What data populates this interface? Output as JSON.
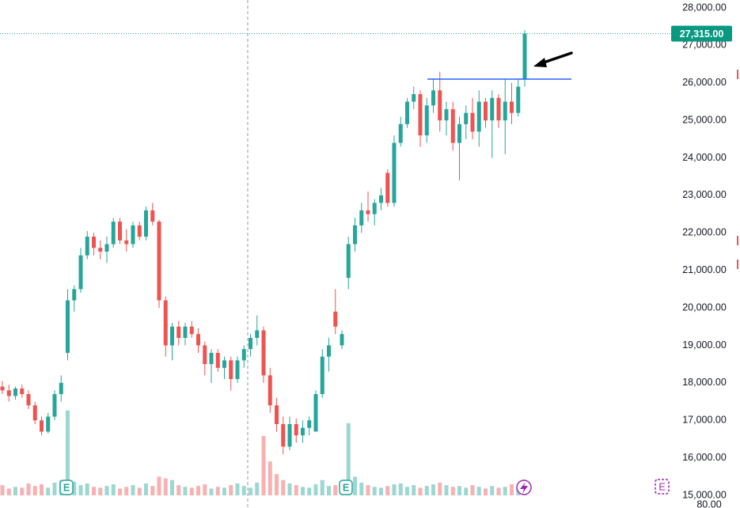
{
  "chart_data": {
    "type": "candlestick",
    "ohlc": [
      [
        17900,
        18050,
        17700,
        17800
      ],
      [
        17800,
        17950,
        17500,
        17650
      ],
      [
        17650,
        17900,
        17550,
        17850
      ],
      [
        17850,
        17950,
        17600,
        17700
      ],
      [
        17700,
        17800,
        17300,
        17400
      ],
      [
        17400,
        17500,
        16900,
        17000
      ],
      [
        17000,
        17100,
        16600,
        16700
      ],
      [
        16700,
        17200,
        16650,
        17100
      ],
      [
        17100,
        17800,
        17000,
        17700
      ],
      [
        17700,
        18200,
        17500,
        18000
      ],
      [
        18800,
        20500,
        18600,
        20200
      ],
      [
        20200,
        20600,
        19900,
        20500
      ],
      [
        20500,
        21600,
        20400,
        21400
      ],
      [
        21400,
        22050,
        21300,
        21900
      ],
      [
        21900,
        22000,
        21400,
        21600
      ],
      [
        21600,
        21800,
        21300,
        21500
      ],
      [
        21500,
        21900,
        21200,
        21700
      ],
      [
        21700,
        22400,
        21600,
        22300
      ],
      [
        22300,
        22400,
        21700,
        21800
      ],
      [
        21800,
        22100,
        21500,
        21700
      ],
      [
        21700,
        22300,
        21600,
        22200
      ],
      [
        22200,
        22300,
        21800,
        21900
      ],
      [
        21900,
        22700,
        21800,
        22600
      ],
      [
        22600,
        22800,
        22200,
        22300
      ],
      [
        22300,
        22350,
        20000,
        20200
      ],
      [
        20200,
        20300,
        18700,
        19000
      ],
      [
        19000,
        19600,
        18600,
        19500
      ],
      [
        19500,
        19650,
        19000,
        19200
      ],
      [
        19200,
        19600,
        19000,
        19500
      ],
      [
        19500,
        19650,
        19200,
        19300
      ],
      [
        19300,
        19450,
        18800,
        19000
      ],
      [
        19000,
        19100,
        18200,
        18500
      ],
      [
        18500,
        18900,
        18000,
        18800
      ],
      [
        18800,
        18900,
        18300,
        18400
      ],
      [
        18400,
        18700,
        18100,
        18600
      ],
      [
        18600,
        18700,
        17800,
        18100
      ],
      [
        18100,
        18700,
        18000,
        18600
      ],
      [
        18600,
        19000,
        18400,
        18900
      ],
      [
        18900,
        19300,
        18700,
        19200
      ],
      [
        19200,
        19800,
        19000,
        19400
      ],
      [
        19400,
        19500,
        18000,
        18200
      ],
      [
        18200,
        18400,
        17200,
        17400
      ],
      [
        17400,
        17600,
        16700,
        16900
      ],
      [
        16900,
        17100,
        16100,
        16300
      ],
      [
        16300,
        17100,
        16200,
        16900
      ],
      [
        16900,
        17050,
        16400,
        16600
      ],
      [
        16600,
        17000,
        16400,
        16800
      ],
      [
        16800,
        17100,
        16600,
        17000
      ],
      [
        16700,
        17800,
        16700,
        17700
      ],
      [
        17700,
        18900,
        17600,
        18700
      ],
      [
        18700,
        19200,
        18300,
        19000
      ],
      [
        19900,
        20500,
        19300,
        19500
      ],
      [
        19000,
        19400,
        18900,
        19300
      ],
      [
        20800,
        21900,
        20500,
        21700
      ],
      [
        21700,
        22400,
        21500,
        22200
      ],
      [
        22200,
        22800,
        22000,
        22600
      ],
      [
        22600,
        23100,
        22300,
        22500
      ],
      [
        22500,
        22900,
        22200,
        22800
      ],
      [
        22800,
        23200,
        22600,
        23000
      ],
      [
        23600,
        23700,
        22700,
        22800
      ],
      [
        22800,
        24600,
        22700,
        24400
      ],
      [
        24400,
        25100,
        24300,
        24900
      ],
      [
        24900,
        25600,
        24800,
        25500
      ],
      [
        25500,
        25900,
        25300,
        25700
      ],
      [
        25700,
        25800,
        24300,
        24600
      ],
      [
        24600,
        25600,
        24400,
        25400
      ],
      [
        25400,
        26100,
        25200,
        25800
      ],
      [
        25800,
        26300,
        24700,
        25000
      ],
      [
        25000,
        25500,
        24600,
        25300
      ],
      [
        25300,
        25500,
        24200,
        24400
      ],
      [
        24400,
        25100,
        23400,
        24900
      ],
      [
        24900,
        25400,
        24500,
        25200
      ],
      [
        25200,
        25600,
        24500,
        24700
      ],
      [
        24700,
        25800,
        24300,
        25500
      ],
      [
        25500,
        25600,
        24800,
        25000
      ],
      [
        25000,
        25800,
        24000,
        25600
      ],
      [
        25600,
        25700,
        24800,
        25000
      ],
      [
        25000,
        26100,
        24100,
        25500
      ],
      [
        25500,
        26000,
        24900,
        25200
      ],
      [
        25200,
        26100,
        25100,
        25900
      ],
      [
        26100,
        27400,
        25900,
        27315
      ]
    ],
    "volume": [
      12,
      8,
      10,
      9,
      14,
      11,
      13,
      9,
      15,
      18,
      100,
      16,
      12,
      14,
      10,
      9,
      11,
      13,
      8,
      10,
      12,
      9,
      14,
      11,
      22,
      20,
      18,
      12,
      10,
      9,
      11,
      13,
      8,
      10,
      9,
      12,
      14,
      11,
      9,
      15,
      70,
      40,
      25,
      18,
      14,
      12,
      10,
      9,
      13,
      18,
      11,
      12,
      14,
      85,
      22,
      15,
      12,
      10,
      9,
      11,
      13,
      14,
      10,
      12,
      9,
      11,
      13,
      15,
      12,
      10,
      11,
      9,
      12,
      10,
      8,
      11,
      9,
      10,
      13,
      9,
      11
    ],
    "volume_ylim": [
      0,
      110
    ],
    "up_color": "#26a69a",
    "down_color": "#ef5350",
    "ylim": [
      15000,
      28000
    ],
    "yticks": [
      {
        "value": 15000,
        "label": "15,000.00"
      },
      {
        "value": 16000,
        "label": "16,000.00"
      },
      {
        "value": 17000,
        "label": "17,000.00"
      },
      {
        "value": 18000,
        "label": "18,000.00"
      },
      {
        "value": 19000,
        "label": "19,000.00"
      },
      {
        "value": 20000,
        "label": "20,000.00"
      },
      {
        "value": 21000,
        "label": "21,000.00"
      },
      {
        "value": 22000,
        "label": "22,000.00"
      },
      {
        "value": 23000,
        "label": "23,000.00"
      },
      {
        "value": 24000,
        "label": "24,000.00"
      },
      {
        "value": 25000,
        "label": "25,000.00"
      },
      {
        "value": 26000,
        "label": "26,000.00"
      },
      {
        "value": 27000,
        "label": "27,000.00"
      },
      {
        "value": 28000,
        "label": "28,000.00"
      }
    ],
    "last_price_label": "27,315.00",
    "level": 26100,
    "level_color": "#2962ff",
    "event_label": "E",
    "volume_axis_label": "80.00"
  }
}
